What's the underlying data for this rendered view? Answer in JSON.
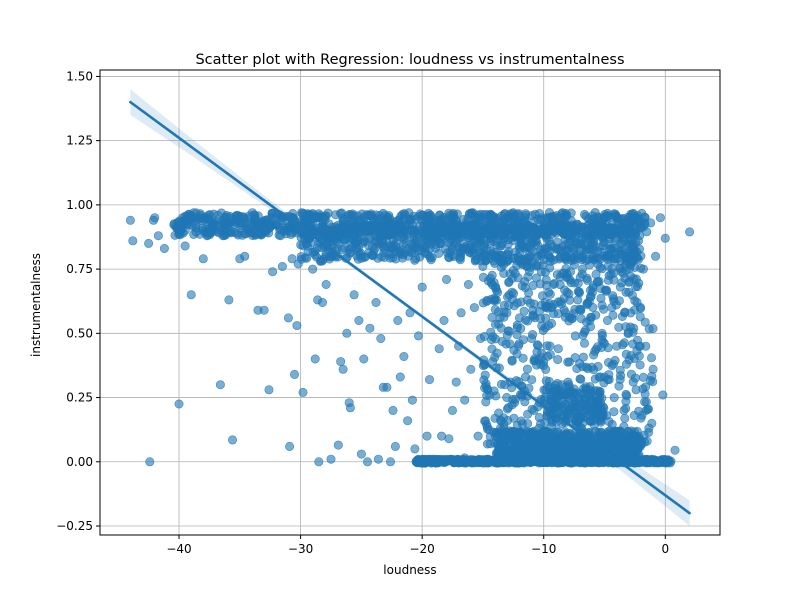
{
  "chart_data": {
    "type": "scatter",
    "title": "Scatter plot with Regression: loudness vs instrumentalness",
    "xlabel": "loudness",
    "ylabel": "instrumentalness",
    "xlim": [
      -46.5,
      4.5
    ],
    "ylim": [
      -0.285,
      1.525
    ],
    "xticks": [
      -40,
      -30,
      -20,
      -10,
      0
    ],
    "yticks": [
      -0.25,
      0.0,
      0.25,
      0.5,
      0.75,
      1.0,
      1.25,
      1.5
    ],
    "xtick_labels": [
      "−40",
      "−30",
      "−20",
      "−10",
      "0"
    ],
    "ytick_labels": [
      "−0.25",
      "0.00",
      "0.25",
      "0.50",
      "0.75",
      "1.00",
      "1.25",
      "1.50"
    ],
    "grid": true,
    "point_color": "#1f77b4",
    "point_alpha": 0.6,
    "regression": {
      "color": "#1f77b4",
      "x": [
        -44,
        2
      ],
      "y": [
        1.4,
        -0.2
      ],
      "ci_halfwidth_at_left": 0.05,
      "ci_halfwidth_at_center": 0.008
    },
    "points": [
      [
        -44.0,
        0.94
      ],
      [
        -43.8,
        0.86
      ],
      [
        -42.4,
        0.0
      ],
      [
        -42.5,
        0.85
      ],
      [
        -42.1,
        0.94
      ],
      [
        -42.0,
        0.95
      ],
      [
        -41.7,
        0.88
      ],
      [
        -41.2,
        0.83
      ],
      [
        -40.0,
        0.225
      ],
      [
        -39.9,
        0.91
      ],
      [
        -39.7,
        0.95
      ],
      [
        -39.5,
        0.84
      ],
      [
        -39.2,
        0.94
      ],
      [
        -39.0,
        0.65
      ],
      [
        -38.6,
        0.92
      ],
      [
        -38.3,
        0.95
      ],
      [
        -38.0,
        0.79
      ],
      [
        -37.7,
        0.88
      ],
      [
        -37.5,
        0.94
      ],
      [
        -36.6,
        0.3
      ],
      [
        -36.3,
        0.9
      ],
      [
        -35.9,
        0.63
      ],
      [
        -35.6,
        0.085
      ],
      [
        -35.3,
        0.93
      ],
      [
        -35.0,
        0.79
      ],
      [
        -34.6,
        0.8
      ],
      [
        -34.2,
        0.9
      ],
      [
        -33.5,
        0.59
      ],
      [
        -33.0,
        0.59
      ],
      [
        -32.6,
        0.28
      ],
      [
        -32.3,
        0.74
      ],
      [
        -31.5,
        0.76
      ],
      [
        -31.0,
        0.56
      ],
      [
        -30.9,
        0.06
      ],
      [
        -30.7,
        0.79
      ],
      [
        -30.5,
        0.34
      ],
      [
        -30.3,
        0.53
      ],
      [
        -30.2,
        0.77
      ],
      [
        -29.8,
        0.27
      ],
      [
        -29.4,
        0.87
      ],
      [
        -29.0,
        0.75
      ],
      [
        -28.8,
        0.4
      ],
      [
        -28.6,
        0.63
      ],
      [
        -28.5,
        0.0
      ],
      [
        -28.2,
        0.62
      ],
      [
        -27.9,
        0.69
      ],
      [
        -27.5,
        0.01
      ],
      [
        -27.3,
        0.81
      ],
      [
        -26.9,
        0.065
      ],
      [
        -26.7,
        0.39
      ],
      [
        -26.5,
        0.36
      ],
      [
        -26.2,
        0.5
      ],
      [
        -26.0,
        0.23
      ],
      [
        -25.9,
        0.21
      ],
      [
        -25.6,
        0.65
      ],
      [
        -25.2,
        0.55
      ],
      [
        -25.0,
        0.03
      ],
      [
        -24.8,
        0.4
      ],
      [
        -24.5,
        0.0
      ],
      [
        -24.3,
        0.52
      ],
      [
        -23.8,
        0.62
      ],
      [
        -23.6,
        0.01
      ],
      [
        -23.4,
        0.48
      ],
      [
        -23.2,
        0.29
      ],
      [
        -22.9,
        0.29
      ],
      [
        -22.6,
        0.0
      ],
      [
        -22.4,
        0.2
      ],
      [
        -22.2,
        0.06
      ],
      [
        -22.0,
        0.55
      ],
      [
        -21.8,
        0.33
      ],
      [
        -21.5,
        0.41
      ],
      [
        -21.2,
        0.16
      ],
      [
        -21.0,
        0.58
      ],
      [
        -20.8,
        0.24
      ],
      [
        -20.6,
        0.05
      ],
      [
        -20.3,
        0.49
      ],
      [
        -20.0,
        0.68
      ],
      [
        -19.8,
        0.0
      ],
      [
        -19.6,
        0.1
      ],
      [
        -19.4,
        0.32
      ],
      [
        -18.6,
        0.44
      ],
      [
        -18.4,
        0.1
      ],
      [
        -18.2,
        0.55
      ],
      [
        -18.0,
        0.71
      ],
      [
        -17.8,
        0.09
      ],
      [
        -17.5,
        0.2
      ],
      [
        -17.2,
        0.31
      ],
      [
        -17.0,
        0.45
      ],
      [
        -16.8,
        0.58
      ],
      [
        -16.5,
        0.24
      ],
      [
        -16.2,
        0.69
      ],
      [
        -16.0,
        0.36
      ],
      [
        -15.7,
        0.6
      ],
      [
        -15.4,
        0.1
      ],
      [
        -15.2,
        0.48
      ],
      [
        -15.0,
        0.76
      ],
      [
        -14.8,
        0.16
      ],
      [
        -14.6,
        0.28
      ],
      [
        -14.4,
        0.07
      ],
      [
        -14.2,
        0.39
      ],
      [
        -14.0,
        0.63
      ],
      [
        -13.7,
        0.19
      ],
      [
        -13.5,
        0.52
      ],
      [
        -13.2,
        0.3
      ],
      [
        -13.0,
        0.81
      ],
      [
        -12.8,
        0.12
      ],
      [
        -12.6,
        0.66
      ],
      [
        -12.4,
        0.23
      ],
      [
        -12.2,
        0.42
      ],
      [
        -12.0,
        0.56
      ],
      [
        -11.8,
        0.07
      ],
      [
        -11.5,
        0.33
      ],
      [
        -11.3,
        0.72
      ],
      [
        -11.0,
        0.48
      ],
      [
        -10.8,
        0.2
      ],
      [
        -10.6,
        0.86
      ],
      [
        -10.4,
        0.13
      ],
      [
        -10.2,
        0.61
      ],
      [
        -10.0,
        0.39
      ],
      [
        -9.8,
        0.04
      ],
      [
        -9.6,
        0.53
      ],
      [
        -9.4,
        0.26
      ],
      [
        -9.2,
        0.69
      ],
      [
        -9.0,
        0.17
      ],
      [
        -8.8,
        0.44
      ],
      [
        -8.6,
        0.82
      ],
      [
        -8.4,
        0.09
      ],
      [
        -8.2,
        0.58
      ],
      [
        -8.0,
        0.31
      ],
      [
        -7.8,
        0.74
      ],
      [
        -7.6,
        0.21
      ],
      [
        -7.4,
        0.49
      ],
      [
        -7.2,
        0.63
      ],
      [
        -7.0,
        0.12
      ],
      [
        -6.8,
        0.37
      ],
      [
        -6.6,
        0.88
      ],
      [
        -6.4,
        0.27
      ],
      [
        -6.2,
        0.55
      ],
      [
        -6.0,
        0.06
      ],
      [
        -5.8,
        0.43
      ],
      [
        -5.6,
        0.7
      ],
      [
        -5.4,
        0.18
      ],
      [
        -5.2,
        0.5
      ],
      [
        -5.0,
        0.33
      ],
      [
        -4.8,
        0.8
      ],
      [
        -4.6,
        0.1
      ],
      [
        -4.4,
        0.6
      ],
      [
        -4.2,
        0.25
      ],
      [
        -4.0,
        0.45
      ],
      [
        -3.8,
        0.03
      ],
      [
        -3.6,
        0.74
      ],
      [
        -3.4,
        0.2
      ],
      [
        -3.2,
        0.38
      ],
      [
        -3.0,
        0.66
      ],
      [
        -2.8,
        0.12
      ],
      [
        -2.6,
        0.52
      ],
      [
        -2.4,
        0.28
      ],
      [
        -2.2,
        0.86
      ],
      [
        -2.0,
        0.17
      ],
      [
        -1.8,
        0.75
      ],
      [
        -1.6,
        0.45
      ],
      [
        -1.5,
        0.08
      ],
      [
        -1.2,
        0.93
      ],
      [
        -1.0,
        0.36
      ],
      [
        -0.8,
        0.8
      ],
      [
        -0.6,
        0.0
      ],
      [
        -0.4,
        0.95
      ],
      [
        -0.2,
        0.26
      ],
      [
        0.0,
        0.87
      ],
      [
        0.3,
        0.0
      ],
      [
        0.8,
        0.045
      ],
      [
        2.0,
        0.895
      ],
      [
        -33.8,
        0.93
      ],
      [
        -31.2,
        0.91
      ],
      [
        -27.0,
        0.9
      ],
      [
        -24.0,
        0.92
      ],
      [
        -21.0,
        0.9
      ],
      [
        -18.0,
        0.92
      ],
      [
        -15.0,
        0.9
      ],
      [
        -12.0,
        0.91
      ],
      [
        -9.0,
        0.89
      ],
      [
        -6.0,
        0.9
      ],
      [
        -3.0,
        0.9
      ],
      [
        -2.0,
        0.93
      ],
      [
        -25.8,
        0.85
      ],
      [
        -22.5,
        0.83
      ],
      [
        -19.5,
        0.86
      ],
      [
        -16.8,
        0.82
      ],
      [
        -13.5,
        0.84
      ],
      [
        -10.5,
        0.8
      ],
      [
        -7.5,
        0.82
      ],
      [
        -4.5,
        0.83
      ],
      [
        -20.5,
        0.0
      ],
      [
        -17.0,
        0.0
      ],
      [
        -14.0,
        0.0
      ],
      [
        -11.0,
        0.0
      ],
      [
        -8.0,
        0.0
      ],
      [
        -5.0,
        0.0
      ],
      [
        -2.5,
        0.0
      ],
      [
        -1.0,
        0.0
      ],
      [
        -16.5,
        0.015
      ],
      [
        -13.0,
        0.02
      ],
      [
        -10.0,
        0.01
      ],
      [
        -7.0,
        0.03
      ],
      [
        -4.0,
        0.02
      ],
      [
        -1.5,
        0.01
      ],
      [
        -9.5,
        0.06
      ],
      [
        -6.5,
        0.07
      ]
    ],
    "clusters": [
      {
        "x": [
          -40.5,
          -1.5
        ],
        "y": [
          0.88,
          0.97
        ],
        "count": 900
      },
      {
        "x": [
          -30,
          -2
        ],
        "y": [
          0.78,
          0.92
        ],
        "count": 700
      },
      {
        "x": [
          -15,
          -2
        ],
        "y": [
          0.55,
          0.8
        ],
        "count": 240
      },
      {
        "x": [
          -15,
          -1
        ],
        "y": [
          0.05,
          0.55
        ],
        "count": 300
      },
      {
        "x": [
          -20.5,
          0.5
        ],
        "y": [
          -0.005,
          0.01
        ],
        "count": 750
      },
      {
        "x": [
          -14,
          -2
        ],
        "y": [
          0.0,
          0.12
        ],
        "count": 650
      },
      {
        "x": [
          -10,
          -5
        ],
        "y": [
          0.15,
          0.3
        ],
        "count": 160
      }
    ]
  }
}
